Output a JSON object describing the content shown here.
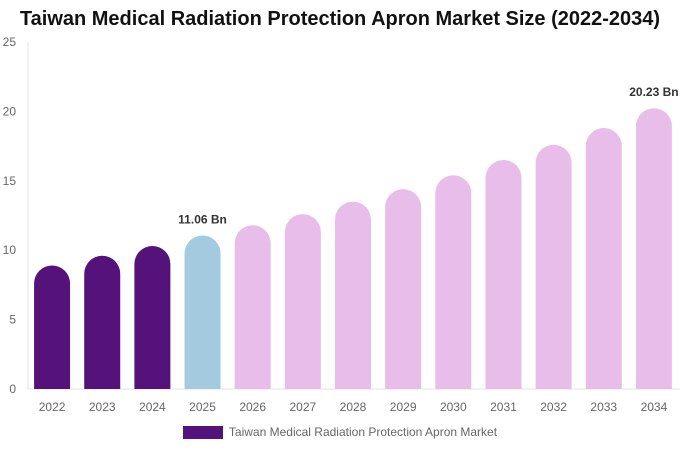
{
  "chart_data": {
    "type": "bar",
    "title": "Taiwan Medical Radiation Protection Apron Market Size (2022-2034)",
    "categories": [
      "2022",
      "2023",
      "2024",
      "2025",
      "2026",
      "2027",
      "2028",
      "2029",
      "2030",
      "2031",
      "2032",
      "2033",
      "2034"
    ],
    "series": [
      {
        "name": "Taiwan Medical Radiation Protection Apron Market",
        "values": [
          8.9,
          9.6,
          10.3,
          11.06,
          11.8,
          12.6,
          13.5,
          14.4,
          15.4,
          16.5,
          17.6,
          18.8,
          20.23
        ]
      }
    ],
    "ylim": [
      0,
      25
    ],
    "yticks": [
      0,
      5,
      10,
      15,
      20,
      25
    ],
    "grid": false,
    "legend_position": "bottom",
    "colors": {
      "historical": "#54127a",
      "base_year": "#a3cadf",
      "forecast": "#e8bde9",
      "legend": "#54127a"
    },
    "annotations": [
      {
        "category": "2025",
        "text": "11.06 Bn"
      },
      {
        "category": "2034",
        "text": "20.23 Bn"
      }
    ]
  }
}
